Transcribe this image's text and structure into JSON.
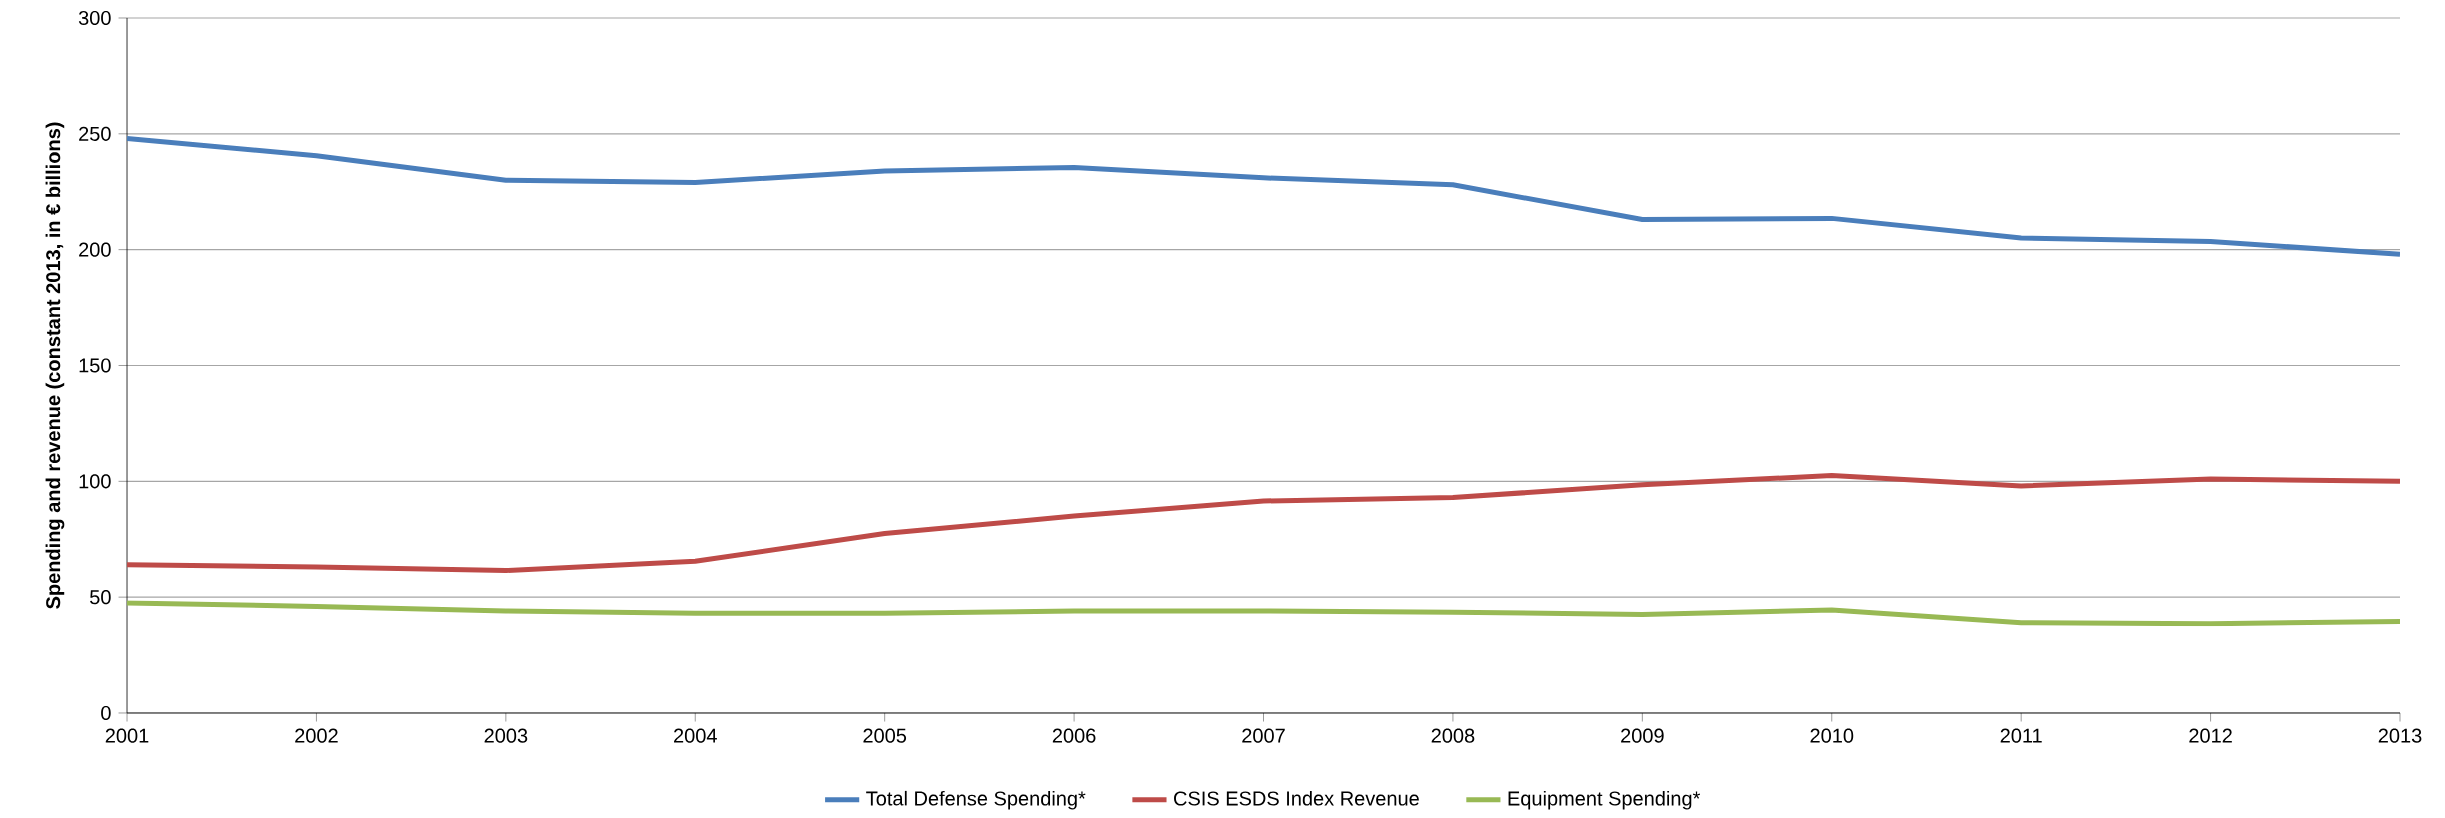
{
  "chart_data": {
    "type": "line",
    "ylabel": "Spending and revenue (constant 2013, in € billions)",
    "x": [
      2001,
      2002,
      2003,
      2004,
      2005,
      2006,
      2007,
      2008,
      2009,
      2010,
      2011,
      2012,
      2013
    ],
    "series": [
      {
        "name": "Total Defense Spending*",
        "color": "#4a7ebb",
        "values": [
          248,
          240.5,
          230,
          229,
          234,
          235.5,
          231,
          228,
          213,
          213.5,
          205,
          203.5,
          198
        ]
      },
      {
        "name": "CSIS ESDS Index Revenue",
        "color": "#be4b48",
        "values": [
          64,
          63,
          61.5,
          65.5,
          77.5,
          85,
          91.5,
          93,
          98.5,
          102.5,
          98,
          101,
          100
        ]
      },
      {
        "name": "Equipment Spending*",
        "color": "#98b954",
        "values": [
          47.5,
          46,
          44,
          43,
          43,
          44,
          44,
          43.5,
          42.5,
          44.5,
          39,
          38.5,
          39.5
        ]
      }
    ],
    "xlim": [
      2001,
      2013
    ],
    "xticks": [
      2001,
      2002,
      2003,
      2004,
      2005,
      2006,
      2007,
      2008,
      2009,
      2010,
      2011,
      2012,
      2013
    ],
    "ylim": [
      0,
      300
    ],
    "yticks": [
      0,
      50,
      100,
      150,
      200,
      250,
      300
    ],
    "grid": "y",
    "legend": "bottom",
    "marker": "none",
    "line_style": "solid"
  }
}
